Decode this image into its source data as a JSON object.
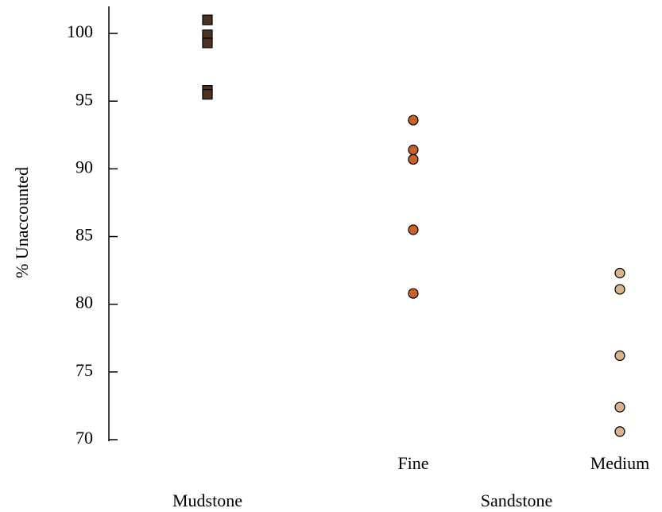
{
  "chart_data": {
    "type": "strip",
    "y_label": "% Unaccounted",
    "ylim": [
      70,
      102
    ],
    "yticks": [
      70,
      75,
      80,
      85,
      90,
      95,
      100
    ],
    "series": [
      {
        "name": "Mudstone",
        "marker": "square",
        "color": "#4a3320",
        "values": [
          101.0,
          99.9,
          99.3,
          95.8,
          95.5
        ]
      },
      {
        "name": "Fine",
        "group": "Sandstone",
        "marker": "circle",
        "color": "#c8622a",
        "values": [
          93.6,
          91.4,
          90.7,
          85.5,
          80.8
        ]
      },
      {
        "name": "Medium",
        "group": "Sandstone",
        "marker": "circle",
        "color": "#d9b38c",
        "values": [
          82.3,
          81.1,
          76.2,
          72.4,
          70.6
        ]
      }
    ]
  }
}
